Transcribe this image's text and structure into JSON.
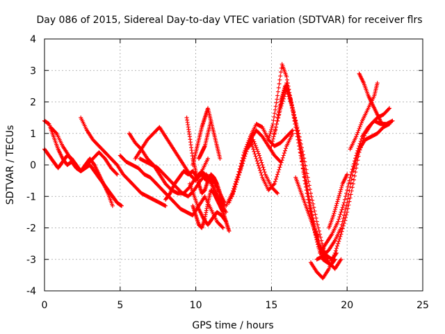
{
  "chart_data": {
    "type": "scatter",
    "title": "Day 086 of 2015, Sidereal Day-to-day VTEC variation (SDTVAR) for receiver flrs",
    "xlabel": "GPS time / hours",
    "ylabel": "SDTVAR / TECUs",
    "xlim": [
      0,
      25
    ],
    "ylim": [
      -4,
      4
    ],
    "xticks": [
      0,
      5,
      10,
      15,
      20,
      25
    ],
    "yticks": [
      -4,
      -3,
      -2,
      -1,
      0,
      1,
      2,
      3,
      4
    ],
    "grid": true,
    "marker": "+",
    "color": "#ff0000",
    "series": [
      {
        "name": "s1",
        "x": [
          0.0,
          0.3,
          0.6,
          0.9,
          1.2,
          1.5,
          1.8,
          2.1,
          2.4,
          2.7,
          3.0,
          3.3,
          3.6,
          3.9,
          4.2,
          4.5,
          4.8,
          5.1
        ],
        "y": [
          1.4,
          1.3,
          0.9,
          0.5,
          0.2,
          0.0,
          0.1,
          -0.1,
          -0.2,
          -0.1,
          0.0,
          -0.2,
          -0.4,
          -0.6,
          -0.8,
          -1.0,
          -1.2,
          -1.3
        ]
      },
      {
        "name": "s2",
        "x": [
          0.0,
          0.3,
          0.6,
          0.9,
          1.2,
          1.5,
          1.8,
          2.1,
          2.4,
          2.7,
          3.0,
          3.3,
          3.6,
          3.9,
          4.2,
          4.5
        ],
        "y": [
          0.5,
          0.3,
          0.1,
          -0.1,
          0.1,
          0.3,
          0.2,
          0.0,
          -0.2,
          0.0,
          0.2,
          0.0,
          -0.3,
          -0.6,
          -0.9,
          -1.3
        ]
      },
      {
        "name": "s3",
        "x": [
          0.4,
          0.8,
          1.2,
          1.6,
          2.0,
          2.4,
          2.8,
          3.2,
          3.6,
          4.0,
          4.4,
          4.8
        ],
        "y": [
          1.2,
          1.0,
          0.6,
          0.3,
          0.0,
          -0.2,
          0.0,
          0.2,
          0.4,
          0.2,
          -0.1,
          -0.3
        ]
      },
      {
        "name": "s4",
        "x": [
          2.4,
          2.8,
          3.2,
          3.6,
          4.0,
          4.4,
          4.8,
          5.2,
          5.6,
          6.0,
          6.4,
          6.8,
          7.2,
          7.6,
          8.0
        ],
        "y": [
          1.5,
          1.1,
          0.8,
          0.6,
          0.4,
          0.2,
          0.0,
          -0.3,
          -0.5,
          -0.7,
          -0.9,
          -1.0,
          -1.1,
          -1.2,
          -1.3
        ]
      },
      {
        "name": "s5",
        "x": [
          5.0,
          5.4,
          5.8,
          6.2,
          6.6,
          7.0,
          7.4,
          7.8,
          8.2,
          8.6,
          9.0,
          9.4,
          9.8,
          10.2,
          10.6,
          11.0,
          11.4,
          11.8
        ],
        "y": [
          0.3,
          0.1,
          0.0,
          -0.1,
          -0.3,
          -0.4,
          -0.6,
          -0.8,
          -1.0,
          -1.2,
          -1.4,
          -1.5,
          -1.6,
          -1.3,
          -1.0,
          -1.4,
          -1.8,
          -2.0
        ]
      },
      {
        "name": "s6",
        "x": [
          5.6,
          6.0,
          6.4,
          6.8,
          7.2,
          7.6,
          8.0,
          8.4,
          8.8,
          9.2,
          9.6,
          10.0,
          10.4,
          10.8,
          11.2,
          11.6,
          12.0
        ],
        "y": [
          1.0,
          0.7,
          0.5,
          0.2,
          0.0,
          -0.3,
          -0.6,
          -0.8,
          -0.9,
          -0.9,
          -0.7,
          -0.4,
          -0.2,
          -0.4,
          -0.8,
          -1.2,
          -1.5
        ]
      },
      {
        "name": "s7",
        "x": [
          6.3,
          6.7,
          7.1,
          7.5,
          7.9,
          8.3,
          8.7,
          9.1,
          9.5,
          9.9,
          10.3,
          10.7,
          11.1,
          11.5,
          11.9
        ],
        "y": [
          0.2,
          0.1,
          0.0,
          -0.1,
          -0.3,
          -0.5,
          -0.7,
          -0.9,
          -1.0,
          -0.8,
          -0.5,
          -0.3,
          -0.6,
          -1.0,
          -1.3
        ]
      },
      {
        "name": "s8",
        "x": [
          6.0,
          6.4,
          6.8,
          7.2,
          7.6,
          8.0,
          8.4,
          8.8,
          9.2,
          9.6,
          10.0,
          10.4,
          10.8
        ],
        "y": [
          0.2,
          0.5,
          0.8,
          1.0,
          1.2,
          0.9,
          0.6,
          0.3,
          0.0,
          -0.3,
          -0.5,
          -0.2,
          0.2
        ]
      },
      {
        "name": "s9",
        "x": [
          8.0,
          8.3,
          8.6,
          8.9,
          9.2,
          9.5,
          9.8,
          10.1,
          10.4,
          10.7,
          11.0,
          11.3,
          11.6,
          11.9
        ],
        "y": [
          -1.1,
          -0.9,
          -0.6,
          -0.4,
          -0.2,
          -0.3,
          -0.2,
          -0.4,
          -0.3,
          -0.5,
          -0.4,
          -0.6,
          -0.9,
          -1.2
        ]
      },
      {
        "name": "s10",
        "x": [
          9.4,
          9.6,
          9.8,
          10.0,
          10.2,
          10.4,
          10.6,
          10.8,
          11.0,
          11.2,
          11.4,
          11.6
        ],
        "y": [
          1.5,
          0.9,
          0.2,
          -0.2,
          -0.6,
          -0.9,
          -0.8,
          -0.5,
          -0.3,
          -0.4,
          -0.6,
          -0.9
        ]
      },
      {
        "name": "s11",
        "x": [
          9.6,
          9.9,
          10.2,
          10.5,
          10.8,
          11.1,
          11.4,
          11.7,
          12.0
        ],
        "y": [
          -0.6,
          -1.0,
          -1.4,
          -1.7,
          -1.9,
          -1.7,
          -1.5,
          -1.6,
          -1.8
        ]
      },
      {
        "name": "s12",
        "x": [
          9.8,
          10.0,
          10.2,
          10.4,
          10.6,
          10.8,
          11.0,
          11.2,
          11.4,
          11.6,
          11.8,
          12.0,
          12.2
        ],
        "y": [
          -1.3,
          -1.6,
          -1.9,
          -2.0,
          -1.7,
          -1.2,
          -0.8,
          -0.9,
          -1.1,
          -1.3,
          -1.5,
          -1.8,
          -2.1
        ]
      },
      {
        "name": "s13",
        "x": [
          9.8,
          10.0,
          10.2,
          10.4,
          10.6,
          10.8,
          11.0,
          11.2,
          11.4,
          11.6
        ],
        "y": [
          0.0,
          0.4,
          0.8,
          1.2,
          1.5,
          1.8,
          1.4,
          1.0,
          0.6,
          0.2
        ]
      },
      {
        "name": "s14",
        "x": [
          10.2,
          10.4,
          10.6,
          10.8,
          11.0
        ],
        "y": [
          0.2,
          0.4,
          0.6,
          1.0,
          1.4
        ]
      },
      {
        "name": "s15",
        "x": [
          12.0,
          12.4,
          12.8,
          13.2,
          13.6,
          14.0,
          14.4,
          14.8,
          15.2,
          15.6,
          16.0,
          16.4
        ],
        "y": [
          -1.3,
          -0.9,
          -0.3,
          0.4,
          0.9,
          1.3,
          1.2,
          0.8,
          0.6,
          0.7,
          0.9,
          1.1
        ]
      },
      {
        "name": "s16",
        "x": [
          12.4,
          12.8,
          13.2,
          13.6,
          14.0,
          14.4,
          14.8,
          15.2,
          15.6
        ],
        "y": [
          -1.0,
          -0.4,
          0.3,
          0.8,
          1.1,
          0.9,
          0.6,
          0.3,
          0.1
        ]
      },
      {
        "name": "s17",
        "x": [
          12.2,
          12.6,
          13.0,
          13.4,
          13.8,
          14.2,
          14.6,
          15.0,
          15.4
        ],
        "y": [
          -1.2,
          -0.7,
          -0.1,
          0.5,
          0.8,
          0.3,
          -0.3,
          -0.7,
          -0.9
        ]
      },
      {
        "name": "s18",
        "x": [
          13.6,
          14.0,
          14.4,
          14.8,
          15.2,
          15.6,
          16.0,
          16.4
        ],
        "y": [
          0.8,
          0.2,
          -0.4,
          -0.8,
          -0.6,
          0.0,
          0.6,
          1.0
        ]
      },
      {
        "name": "s19",
        "x": [
          14.8,
          15.1,
          15.4,
          15.7,
          16.0,
          16.3,
          16.6,
          16.9,
          17.2,
          17.5,
          17.8,
          18.1,
          18.4,
          18.7,
          19.0,
          19.3
        ],
        "y": [
          0.8,
          1.3,
          2.2,
          3.2,
          2.8,
          2.0,
          1.3,
          0.5,
          -0.5,
          -1.3,
          -2.0,
          -2.5,
          -2.8,
          -2.9,
          -3.0,
          -2.8
        ]
      },
      {
        "name": "s20",
        "x": [
          15.0,
          15.3,
          15.6,
          15.9,
          16.2,
          16.5,
          16.8,
          17.1,
          17.4,
          17.7,
          18.0,
          18.3,
          18.6,
          18.9,
          19.2
        ],
        "y": [
          0.6,
          1.2,
          2.0,
          2.5,
          2.2,
          1.6,
          0.9,
          0.1,
          -0.8,
          -1.6,
          -2.3,
          -2.7,
          -3.0,
          -3.2,
          -3.0
        ]
      },
      {
        "name": "s21",
        "x": [
          15.4,
          15.7,
          16.0,
          16.3,
          16.6,
          16.9,
          17.2,
          17.5,
          17.8,
          18.1,
          18.4,
          18.7
        ],
        "y": [
          1.4,
          2.1,
          2.6,
          2.0,
          1.2,
          0.4,
          -0.4,
          -1.2,
          -2.0,
          -2.6,
          -3.0,
          -3.1
        ]
      },
      {
        "name": "s22",
        "x": [
          15.2,
          15.6,
          16.0,
          16.4,
          16.8,
          17.2,
          17.6,
          18.0,
          18.4,
          18.8,
          19.2,
          19.6
        ],
        "y": [
          1.0,
          1.8,
          2.4,
          1.8,
          1.0,
          0.1,
          -0.9,
          -1.8,
          -2.6,
          -3.1,
          -3.3,
          -3.0
        ]
      },
      {
        "name": "s23",
        "x": [
          17.6,
          18.0,
          18.4,
          18.8,
          19.2,
          19.6,
          20.0,
          20.4,
          20.8,
          21.2,
          21.6,
          22.0,
          22.4,
          22.8
        ],
        "y": [
          -3.1,
          -3.4,
          -3.6,
          -3.3,
          -2.8,
          -2.2,
          -1.5,
          -0.6,
          0.4,
          1.0,
          1.3,
          1.5,
          1.6,
          1.8
        ]
      },
      {
        "name": "s24",
        "x": [
          18.0,
          18.4,
          18.8,
          19.2,
          19.6,
          20.0,
          20.4,
          20.8,
          21.2,
          21.6,
          22.0,
          22.4,
          22.8
        ],
        "y": [
          -3.0,
          -2.9,
          -2.7,
          -2.4,
          -2.0,
          -1.2,
          -0.2,
          0.5,
          0.8,
          0.9,
          1.0,
          1.2,
          1.3
        ]
      },
      {
        "name": "s25",
        "x": [
          18.2,
          18.6,
          19.0,
          19.4,
          19.8,
          20.2,
          20.6,
          21.0,
          21.4,
          21.8,
          22.2,
          22.6,
          23.0
        ],
        "y": [
          -2.8,
          -2.5,
          -2.2,
          -1.8,
          -1.2,
          -0.4,
          0.3,
          0.9,
          1.2,
          1.4,
          1.3,
          1.3,
          1.4
        ]
      },
      {
        "name": "s26",
        "x": [
          18.8,
          19.1,
          19.4,
          19.7,
          20.0
        ],
        "y": [
          -2.0,
          -1.6,
          -1.1,
          -0.6,
          -0.3
        ]
      },
      {
        "name": "s27",
        "x": [
          20.8,
          21.1,
          21.4,
          21.7,
          22.0,
          22.3
        ],
        "y": [
          2.9,
          2.6,
          2.2,
          1.9,
          1.6,
          1.3
        ]
      },
      {
        "name": "s28",
        "x": [
          20.2,
          20.6,
          21.0,
          21.4,
          21.8,
          22.0
        ],
        "y": [
          0.5,
          0.9,
          1.4,
          1.8,
          2.2,
          2.6
        ]
      },
      {
        "name": "s29",
        "x": [
          16.6,
          16.9,
          17.2,
          17.5,
          17.8,
          18.1
        ],
        "y": [
          -0.4,
          -0.8,
          -1.2,
          -1.6,
          -2.0,
          -2.3
        ]
      }
    ]
  }
}
